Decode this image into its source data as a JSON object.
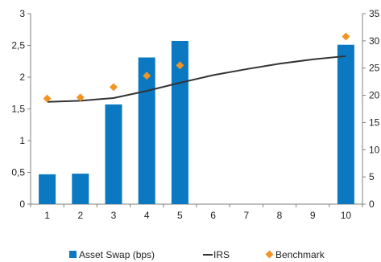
{
  "chart_data": {
    "type": "bar",
    "title": "",
    "xlabel": "",
    "ylabel": "",
    "categories": [
      "1",
      "2",
      "3",
      "4",
      "5",
      "6",
      "7",
      "8",
      "9",
      "10"
    ],
    "ylim_left": [
      0,
      3
    ],
    "ylim_right": [
      0,
      35
    ],
    "left_ticks": [
      "0",
      "0,5",
      "1",
      "1,5",
      "2",
      "2,5",
      "3"
    ],
    "right_ticks": [
      "0",
      "5",
      "10",
      "15",
      "20",
      "25",
      "30",
      "35"
    ],
    "grid": false,
    "legend_position": "bottom",
    "series": [
      {
        "name": "Asset Swap (bps)",
        "kind": "bar",
        "axis": "left",
        "color": "#0a79c2",
        "values": [
          0.47,
          0.48,
          1.57,
          2.31,
          2.57,
          null,
          null,
          null,
          null,
          2.51
        ]
      },
      {
        "name": "IRS",
        "kind": "line",
        "axis": "right",
        "color": "#333333",
        "values": [
          18.8,
          19.0,
          19.5,
          20.8,
          22.3,
          23.7,
          24.8,
          25.8,
          26.6,
          27.2
        ]
      },
      {
        "name": "Benchmark",
        "kind": "marker",
        "axis": "right",
        "color": "#f29421",
        "values": [
          19.4,
          19.6,
          21.5,
          23.6,
          25.5,
          null,
          null,
          null,
          null,
          30.8
        ]
      }
    ]
  }
}
